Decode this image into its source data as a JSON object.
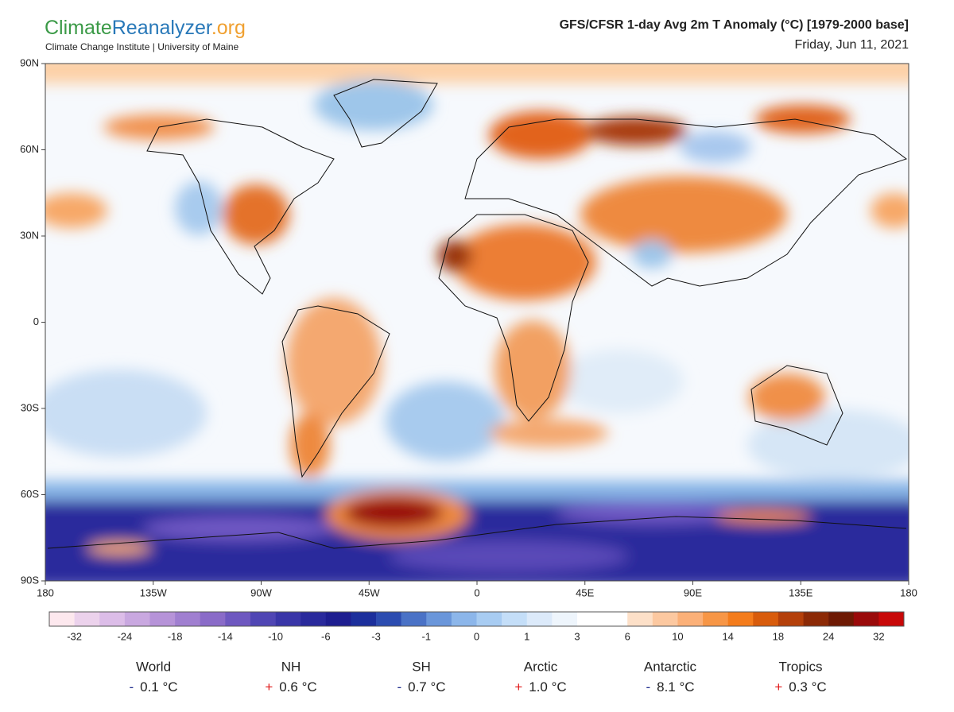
{
  "header": {
    "brand": [
      "Climate",
      "Reanalyzer",
      ".org"
    ],
    "subtitle": "Climate Change Institute | University of Maine",
    "title": "GFS/CFSR 1-day Avg 2m T Anomaly (°C) [1979-2000 base]",
    "date": "Friday, Jun 11, 2021"
  },
  "map": {
    "lat_labels": [
      "90N",
      "60N",
      "30N",
      "0",
      "30S",
      "60S",
      "90S"
    ],
    "lon_labels": [
      "180",
      "135W",
      "90W",
      "45W",
      "0",
      "45E",
      "90E",
      "135E",
      "180"
    ]
  },
  "colorbar": {
    "labels": [
      -32,
      -24,
      -18,
      -14,
      -10,
      -6,
      -3,
      -1,
      0,
      1,
      3,
      6,
      10,
      14,
      18,
      24,
      32
    ],
    "colors": [
      "#fde8ee",
      "#ecd2ec",
      "#dcbde8",
      "#c9a8e0",
      "#b693d8",
      "#a07fd0",
      "#8a6bc8",
      "#6e58c0",
      "#5046b4",
      "#3a36a8",
      "#2a2a9c",
      "#1e1e90",
      "#1c2f9c",
      "#2c4cb0",
      "#4a72c6",
      "#6a96da",
      "#8cb6ea",
      "#a8ccf2",
      "#c4def8",
      "#dceafa",
      "#eef5fc",
      "#ffffff",
      "#ffffff",
      "#fde0c8",
      "#fcc8a0",
      "#fbb078",
      "#f79646",
      "#f47c1c",
      "#d85c0c",
      "#b4400a",
      "#8c2a06",
      "#6e1a04",
      "#9a0a0a",
      "#c80808"
    ]
  },
  "stats": [
    {
      "region": "World",
      "sign": "-",
      "value": "0.1 °C"
    },
    {
      "region": "NH",
      "sign": "+",
      "value": "0.6 °C"
    },
    {
      "region": "SH",
      "sign": "-",
      "value": "0.7 °C"
    },
    {
      "region": "Arctic",
      "sign": "+",
      "value": "1.0 °C"
    },
    {
      "region": "Antarctic",
      "sign": "-",
      "value": "8.1 °C"
    },
    {
      "region": "Tropics",
      "sign": "+",
      "value": "0.3 °C"
    }
  ]
}
